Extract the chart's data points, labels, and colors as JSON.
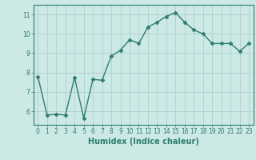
{
  "x": [
    0,
    1,
    2,
    3,
    4,
    5,
    6,
    7,
    8,
    9,
    10,
    11,
    12,
    13,
    14,
    15,
    16,
    17,
    18,
    19,
    20,
    21,
    22,
    23
  ],
  "y": [
    7.8,
    5.8,
    5.85,
    5.8,
    7.75,
    5.65,
    7.65,
    7.6,
    8.85,
    9.15,
    9.7,
    9.5,
    10.35,
    10.6,
    10.9,
    11.1,
    10.6,
    10.2,
    10.0,
    9.5,
    9.5,
    9.5,
    9.1,
    9.5
  ],
  "line_color": "#2e7d6e",
  "marker": "D",
  "marker_size": 2.5,
  "line_width": 1.0,
  "bg_color": "#cce9e5",
  "grid_color": "#b0d4d0",
  "xlabel": "Humidex (Indice chaleur)",
  "xlim": [
    -0.5,
    23.5
  ],
  "ylim": [
    5.3,
    11.5
  ],
  "yticks": [
    6,
    7,
    8,
    9,
    10,
    11
  ],
  "xticks": [
    0,
    1,
    2,
    3,
    4,
    5,
    6,
    7,
    8,
    9,
    10,
    11,
    12,
    13,
    14,
    15,
    16,
    17,
    18,
    19,
    20,
    21,
    22,
    23
  ],
  "tick_color": "#2e7d6e",
  "tick_fontsize": 5.5,
  "xlabel_fontsize": 7.0,
  "xlabel_fontweight": "bold",
  "spine_color": "#2e7d6e"
}
